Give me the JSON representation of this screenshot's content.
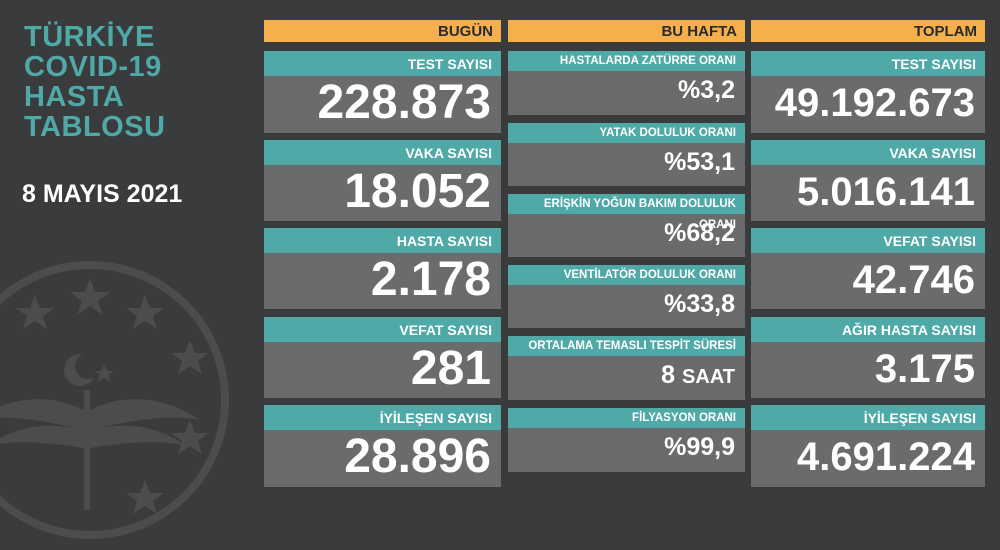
{
  "title_lines": [
    "TÜRKİYE",
    "COVID-19",
    "HASTA",
    "TABLOSU"
  ],
  "date": "8 MAYIS 2021",
  "colors": {
    "teal": "#4fa9a7",
    "orange": "#f3b04d",
    "box": "#6a6b6d",
    "background": "#3a3b3d"
  },
  "today": {
    "header": "BUGÜN",
    "items": [
      {
        "label": "TEST SAYISI",
        "value": "228.873"
      },
      {
        "label": "VAKA SAYISI",
        "value": "18.052"
      },
      {
        "label": "HASTA SAYISI",
        "value": "2.178"
      },
      {
        "label": "VEFAT SAYISI",
        "value": "281"
      },
      {
        "label": "İYİLEŞEN SAYISI",
        "value": "28.896"
      }
    ]
  },
  "week": {
    "header": "BU HAFTA",
    "items": [
      {
        "label": "HASTALARDA ZATÜRRE ORANI",
        "value": "%3,2"
      },
      {
        "label": "YATAK DOLULUK ORANI",
        "value": "%53,1"
      },
      {
        "label": "ERİŞKİN YOĞUN BAKIM DOLULUK ORANI",
        "value": "%68,2"
      },
      {
        "label": "VENTİLATÖR DOLULUK ORANI",
        "value": "%33,8"
      },
      {
        "label": "ORTALAMA TEMASLI TESPİT SÜRESİ",
        "value": "8",
        "unit": "SAAT"
      },
      {
        "label": "FİLYASYON ORANI",
        "value": "%99,9"
      }
    ]
  },
  "total": {
    "header": "TOPLAM",
    "items": [
      {
        "label": "TEST SAYISI",
        "value": "49.192.673"
      },
      {
        "label": "VAKA SAYISI",
        "value": "5.016.141"
      },
      {
        "label": "VEFAT SAYISI",
        "value": "42.746"
      },
      {
        "label": "AĞIR HASTA SAYISI",
        "value": "3.175"
      },
      {
        "label": "İYİLEŞEN SAYISI",
        "value": "4.691.224"
      }
    ]
  }
}
